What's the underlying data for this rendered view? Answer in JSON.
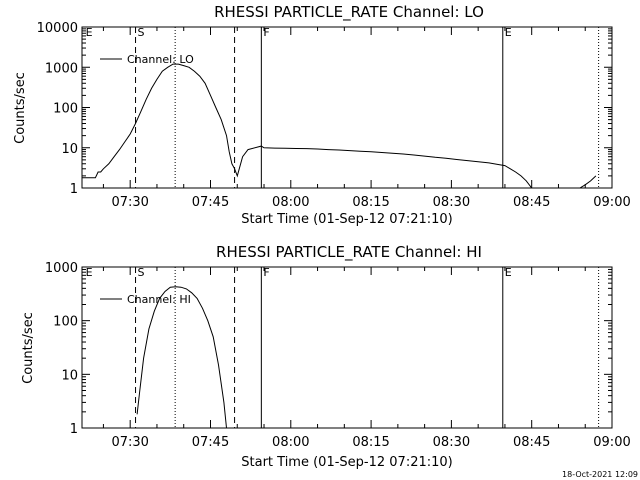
{
  "footer_date": "18-Oct-2021 12:09",
  "chart_data": [
    {
      "type": "line",
      "title": "RHESSI PARTICLE_RATE Channel: LO",
      "xlabel": "Start Time (01-Sep-12 07:21:10)",
      "ylabel": "Counts/sec",
      "yscale": "log",
      "ylim": [
        1,
        10000
      ],
      "yticks": [
        {
          "value": 1,
          "label": "1"
        },
        {
          "value": 10,
          "label": "10"
        },
        {
          "value": 100,
          "label": "100"
        },
        {
          "value": 1000,
          "label": "1000"
        },
        {
          "value": 10000,
          "label": "10000"
        }
      ],
      "xlim_minutes": [
        0,
        99
      ],
      "xticks": [
        {
          "value": 9,
          "label": "07:30"
        },
        {
          "value": 24,
          "label": "07:45"
        },
        {
          "value": 39,
          "label": "08:00"
        },
        {
          "value": 54,
          "label": "08:15"
        },
        {
          "value": 69,
          "label": "08:30"
        },
        {
          "value": 84,
          "label": "08:45"
        },
        {
          "value": 99,
          "label": "09:00"
        }
      ],
      "legend": {
        "label": "Channel: LO",
        "position": "top-left"
      },
      "markers": [
        {
          "label": "E",
          "minute": 0.3,
          "style": "none"
        },
        {
          "label": "S",
          "minute": 10,
          "style": "dashed"
        },
        {
          "label": "",
          "minute": 17.4,
          "style": "dotted"
        },
        {
          "label": "",
          "minute": 28.5,
          "style": "dashed"
        },
        {
          "label": "F",
          "minute": 33.5,
          "style": "solid"
        },
        {
          "label": "E",
          "minute": 78.6,
          "style": "solid"
        },
        {
          "label": "",
          "minute": 96.5,
          "style": "dotted"
        }
      ],
      "series": [
        {
          "name": "Channel: LO",
          "x": [
            0,
            2.5,
            3,
            3.5,
            4,
            5,
            6,
            7,
            8,
            9,
            10,
            11,
            12,
            13,
            14,
            15,
            16,
            17,
            18,
            19,
            20,
            21,
            22,
            23,
            24,
            25,
            26,
            27,
            27.5,
            28,
            28.5,
            29,
            30,
            31,
            33.5,
            34,
            36,
            38,
            40,
            42,
            44,
            46,
            48,
            50,
            52,
            54,
            56,
            58,
            60,
            62,
            64,
            66,
            68,
            70,
            72,
            74,
            76,
            78,
            79,
            80,
            81,
            82,
            83,
            84,
            85,
            86,
            87,
            88,
            89,
            90,
            91,
            92,
            93,
            94,
            95,
            96
          ],
          "y": [
            1.8,
            1.8,
            2.5,
            2.5,
            3,
            4,
            6,
            9,
            14,
            22,
            40,
            80,
            160,
            300,
            500,
            800,
            1000,
            1200,
            1200,
            1100,
            1000,
            800,
            600,
            400,
            200,
            100,
            50,
            20,
            8,
            4,
            3,
            2,
            6,
            9,
            11,
            10,
            9.8,
            9.7,
            9.6,
            9.5,
            9.3,
            9,
            8.8,
            8.5,
            8.2,
            8,
            7.6,
            7.3,
            7,
            6.6,
            6.2,
            5.8,
            5.5,
            5.1,
            4.8,
            4.5,
            4.2,
            3.8,
            3.6,
            3,
            2.5,
            2,
            1.5,
            1,
            1,
            1,
            1,
            1,
            1,
            1,
            1,
            1,
            1,
            1.2,
            1.5,
            2
          ]
        }
      ]
    },
    {
      "type": "line",
      "title": "RHESSI PARTICLE_RATE Channel: HI",
      "xlabel": "Start Time (01-Sep-12 07:21:10)",
      "ylabel": "Counts/sec",
      "yscale": "log",
      "ylim": [
        1,
        1000
      ],
      "yticks": [
        {
          "value": 1,
          "label": "1"
        },
        {
          "value": 10,
          "label": "10"
        },
        {
          "value": 100,
          "label": "100"
        },
        {
          "value": 1000,
          "label": "1000"
        }
      ],
      "xlim_minutes": [
        0,
        99
      ],
      "xticks": [
        {
          "value": 9,
          "label": "07:30"
        },
        {
          "value": 24,
          "label": "07:45"
        },
        {
          "value": 39,
          "label": "08:00"
        },
        {
          "value": 54,
          "label": "08:15"
        },
        {
          "value": 69,
          "label": "08:30"
        },
        {
          "value": 84,
          "label": "08:45"
        },
        {
          "value": 99,
          "label": "09:00"
        }
      ],
      "legend": {
        "label": "Channel: HI",
        "position": "top-left"
      },
      "markers": [
        {
          "label": "E",
          "minute": 0.3,
          "style": "none"
        },
        {
          "label": "S",
          "minute": 10,
          "style": "dashed"
        },
        {
          "label": "",
          "minute": 17.4,
          "style": "dotted"
        },
        {
          "label": "",
          "minute": 28.5,
          "style": "dashed"
        },
        {
          "label": "F",
          "minute": 33.5,
          "style": "solid"
        },
        {
          "label": "E",
          "minute": 78.6,
          "style": "solid"
        },
        {
          "label": "",
          "minute": 96.5,
          "style": "dotted"
        }
      ],
      "series": [
        {
          "name": "Channel: HI",
          "x": [
            10.3,
            10.8,
            11.5,
            12.5,
            13.5,
            14.5,
            15.5,
            16.5,
            17.5,
            18.5,
            19.5,
            20.5,
            21.5,
            22.5,
            23.5,
            24.5,
            25.5,
            26.5,
            27
          ],
          "y": [
            1.8,
            5,
            20,
            70,
            150,
            260,
            350,
            420,
            430,
            420,
            390,
            330,
            260,
            170,
            100,
            50,
            15,
            3,
            1
          ]
        }
      ]
    }
  ]
}
